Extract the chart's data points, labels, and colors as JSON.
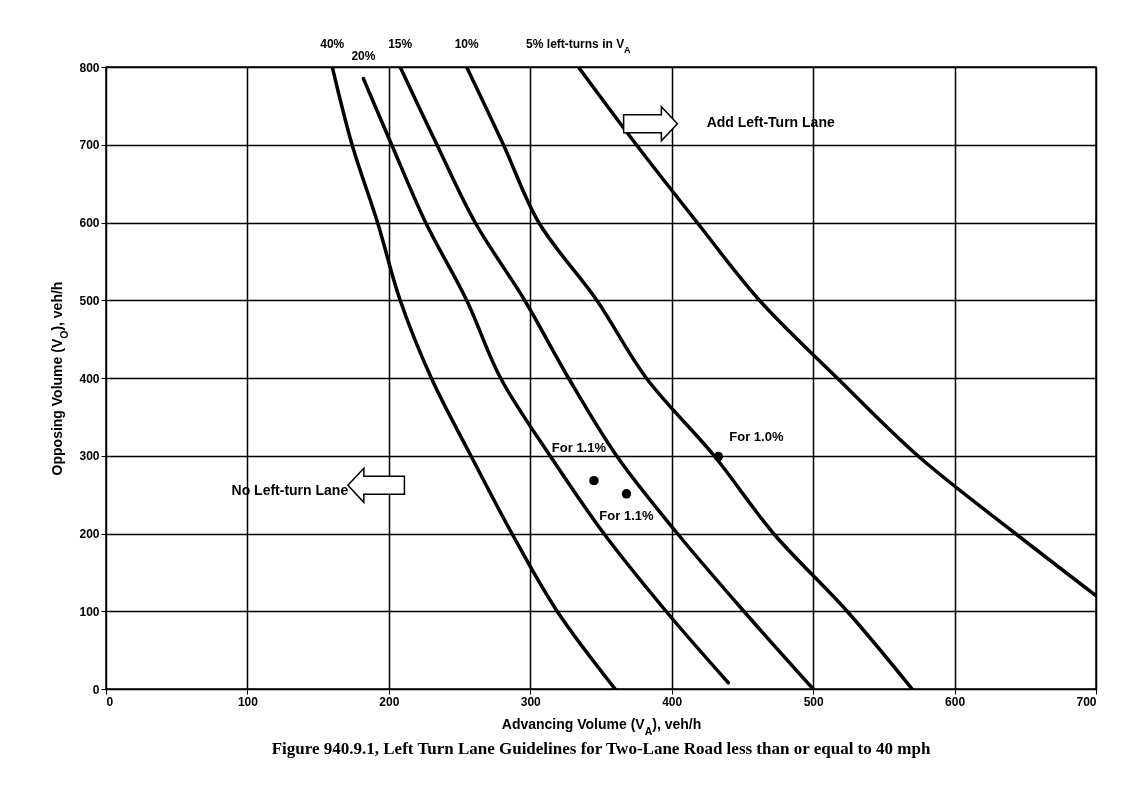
{
  "chart_data": {
    "type": "line",
    "title": "Figure 940.9.1, Left Turn Lane Guidelines for Two-Lane Road less than or equal to 40 mph",
    "xlabel": "Advancing Volume (V$_{A}$), veh/h",
    "ylabel": "Opposing Volume (V$_{O}$), veh/h",
    "xlim": [
      0,
      700
    ],
    "ylim": [
      0,
      800
    ],
    "xticks": [
      0,
      100,
      200,
      300,
      400,
      500,
      600,
      700
    ],
    "yticks": [
      0,
      100,
      200,
      300,
      400,
      500,
      600,
      700,
      800
    ],
    "grid": true,
    "marker": "none",
    "line_style": "solid",
    "series": [
      {
        "name": "40%",
        "color": "#000000",
        "x": [
          160,
          174,
          192,
          208,
          230,
          258,
          287,
          319,
          360
        ],
        "values": [
          800,
          700,
          600,
          500,
          400,
          300,
          200,
          100,
          0
        ]
      },
      {
        "name": "20%",
        "color": "#000000",
        "x": [
          182,
          202,
          226,
          255,
          279,
          314,
          352,
          396,
          440
        ],
        "values": [
          785,
          700,
          600,
          500,
          400,
          300,
          200,
          100,
          8
        ]
      },
      {
        "name": "15%",
        "color": "#000000",
        "x": [
          208,
          234,
          261,
          296,
          327,
          361,
          404,
          451,
          500
        ],
        "values": [
          800,
          700,
          600,
          500,
          400,
          300,
          200,
          100,
          0
        ]
      },
      {
        "name": "10%",
        "color": "#000000",
        "x": [
          255,
          281,
          306,
          347,
          382,
          430,
          472,
          524,
          570
        ],
        "values": [
          800,
          700,
          600,
          500,
          400,
          300,
          200,
          100,
          0
        ]
      },
      {
        "name": "5% left-turns in V$_{A}$",
        "color": "#000000",
        "x": [
          334,
          375,
          418,
          462,
          517,
          574,
          643,
          700
        ],
        "values": [
          800,
          700,
          600,
          500,
          400,
          300,
          200,
          120
        ]
      },
      {
        "type": "scatter",
        "marker": "circle",
        "color": "#000000",
        "x": [
          345,
          368,
          433
        ],
        "values": [
          268,
          251,
          299
        ]
      }
    ],
    "annotations": [
      {
        "text": "For 1.1%",
        "x": 345,
        "y": 268
      },
      {
        "text": "For 1.1%",
        "x": 368,
        "y": 251
      },
      {
        "text": "For 1.0%",
        "x": 433,
        "y": 299
      },
      "Add Left-Turn Lane",
      "No Left-turn Lane"
    ]
  }
}
